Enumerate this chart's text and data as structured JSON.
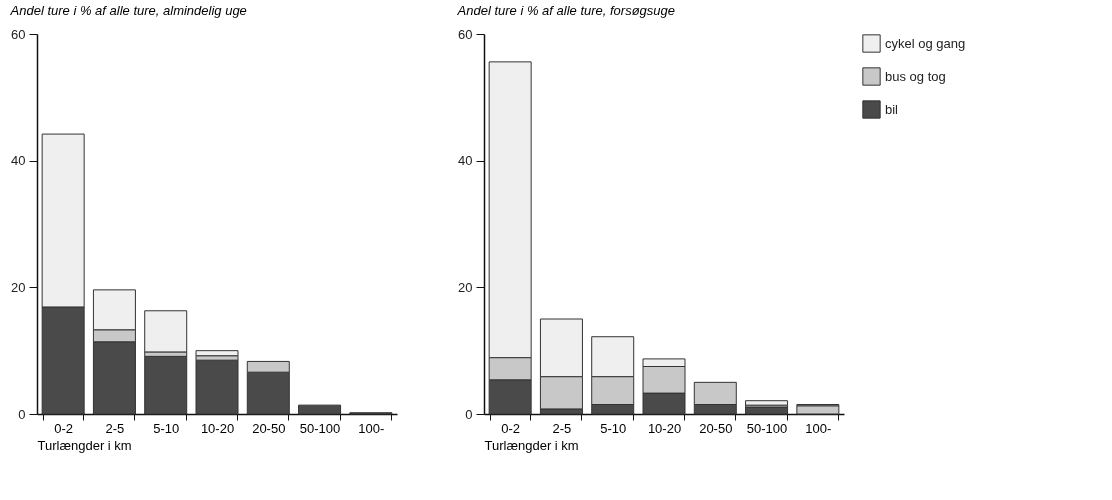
{
  "chart_data": [
    {
      "type": "bar",
      "title": "Andel ture i % af alle ture, almindelig uge",
      "xlabel": "Turlængder i km",
      "categories": [
        "0-2",
        "2-5",
        "5-10",
        "10-20",
        "20-50",
        "50-100",
        "100-"
      ],
      "stacked": true,
      "ylim": [
        0,
        60
      ],
      "yticks": [
        0,
        20,
        40,
        60
      ],
      "grid": false,
      "legend": false,
      "series": [
        {
          "color": "#4a4a4a",
          "values": [
            16.9,
            11.4,
            9.1,
            8.5,
            6.6,
            1.4,
            0.2
          ]
        },
        {
          "color": "#c8c8c8",
          "values": [
            0,
            1.9,
            0.7,
            0.7,
            1.7,
            0,
            0
          ]
        },
        {
          "color": "#efefef",
          "values": [
            27.3,
            6.3,
            6.5,
            0.8,
            0,
            0,
            0
          ]
        }
      ]
    },
    {
      "type": "bar",
      "title": "Andel ture i % af alle ture, forsøgsuge",
      "xlabel": "Turlængder i km",
      "categories": [
        "0-2",
        "2-5",
        "5-10",
        "10-20",
        "20-50",
        "50-100",
        "100-"
      ],
      "stacked": true,
      "ylim": [
        0,
        60
      ],
      "yticks": [
        0,
        20,
        40,
        60
      ],
      "grid": false,
      "legend": "right",
      "series": [
        {
          "name": "bil",
          "color": "#4a4a4a",
          "values": [
            5.4,
            0.8,
            1.5,
            3.3,
            1.5,
            1.1,
            0
          ]
        },
        {
          "name": "bus og tog",
          "color": "#c8c8c8",
          "values": [
            3.5,
            5.1,
            4.4,
            4.2,
            3.5,
            0.3,
            1.3
          ]
        },
        {
          "name": "cykel og gang",
          "color": "#efefef",
          "values": [
            46.7,
            9.1,
            6.3,
            1.2,
            0,
            0.7,
            0.2
          ]
        }
      ]
    }
  ]
}
